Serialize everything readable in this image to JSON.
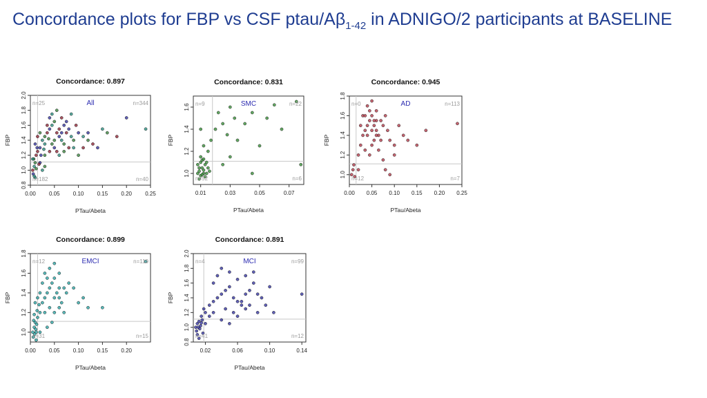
{
  "title": {
    "before": "Concordance plots for FBP vs CSF ptau/A",
    "greek": "β",
    "subscript": "1-42",
    "after": " in ADNIGO/2 participants at BASELINE"
  },
  "colors": {
    "All_mixed": [
      "#8b1a2b",
      "#2a2a9a",
      "#1f8a7a",
      "#2e7d32"
    ],
    "SMC": "#2e8b2e",
    "AD": "#b03040",
    "EMCI": "#20a0a0",
    "MCI": "#2a2a9e",
    "cutoff": "#c8c8c8"
  },
  "chart_data": [
    {
      "type": "scatter",
      "title": "Concordance: 0.897",
      "group": "All",
      "xlabel": "PTau/Abeta",
      "ylabel": "FBP",
      "xlim": [
        0,
        0.25
      ],
      "ylim": [
        0.8,
        2.0
      ],
      "xticks": [
        "0.00",
        "0.05",
        "0.10",
        "0.15",
        "0.20",
        "0.25"
      ],
      "yticks": [
        "0.8",
        "1.0",
        "1.2",
        "1.4",
        "1.6",
        "1.8",
        "2.0"
      ],
      "quadrant_counts": {
        "top_left": "n=25",
        "top_right": "n=344",
        "bottom_left": "n=182",
        "bottom_right": "n=40"
      },
      "x_cutoff": 0.015,
      "y_cutoff": 1.11,
      "points": [
        [
          0.005,
          1.0
        ],
        [
          0.006,
          0.95
        ],
        [
          0.008,
          1.05
        ],
        [
          0.01,
          1.1
        ],
        [
          0.012,
          1.2
        ],
        [
          0.014,
          1.3
        ],
        [
          0.01,
          0.9
        ],
        [
          0.007,
          1.15
        ],
        [
          0.015,
          1.25
        ],
        [
          0.02,
          1.3
        ],
        [
          0.025,
          1.4
        ],
        [
          0.03,
          1.45
        ],
        [
          0.035,
          1.5
        ],
        [
          0.04,
          1.55
        ],
        [
          0.045,
          1.6
        ],
        [
          0.05,
          1.65
        ],
        [
          0.055,
          1.5
        ],
        [
          0.06,
          1.45
        ],
        [
          0.065,
          1.4
        ],
        [
          0.07,
          1.35
        ],
        [
          0.075,
          1.5
        ],
        [
          0.08,
          1.55
        ],
        [
          0.085,
          1.45
        ],
        [
          0.09,
          1.4
        ],
        [
          0.095,
          1.6
        ],
        [
          0.1,
          1.5
        ],
        [
          0.11,
          1.45
        ],
        [
          0.12,
          1.4
        ],
        [
          0.13,
          1.35
        ],
        [
          0.14,
          1.3
        ],
        [
          0.15,
          1.55
        ],
        [
          0.16,
          1.5
        ],
        [
          0.18,
          1.45
        ],
        [
          0.2,
          1.7
        ],
        [
          0.24,
          1.55
        ],
        [
          0.03,
          1.2
        ],
        [
          0.04,
          1.25
        ],
        [
          0.05,
          1.3
        ],
        [
          0.06,
          1.2
        ],
        [
          0.07,
          1.25
        ],
        [
          0.08,
          1.3
        ],
        [
          0.02,
          1.1
        ],
        [
          0.025,
          1.0
        ],
        [
          0.03,
          1.05
        ],
        [
          0.035,
          1.6
        ],
        [
          0.04,
          1.7
        ],
        [
          0.045,
          1.75
        ],
        [
          0.055,
          1.8
        ],
        [
          0.065,
          1.7
        ],
        [
          0.075,
          1.65
        ],
        [
          0.085,
          1.75
        ],
        [
          0.05,
          1.4
        ],
        [
          0.06,
          1.55
        ],
        [
          0.07,
          1.6
        ],
        [
          0.03,
          1.35
        ],
        [
          0.02,
          1.5
        ],
        [
          0.015,
          1.45
        ],
        [
          0.01,
          1.35
        ],
        [
          0.005,
          1.15
        ],
        [
          0.045,
          1.35
        ],
        [
          0.055,
          1.25
        ],
        [
          0.065,
          1.5
        ],
        [
          0.09,
          1.3
        ],
        [
          0.1,
          1.2
        ],
        [
          0.11,
          1.3
        ],
        [
          0.12,
          1.5
        ],
        [
          0.008,
          0.92
        ],
        [
          0.012,
          1.02
        ],
        [
          0.018,
          1.08
        ],
        [
          0.022,
          1.2
        ],
        [
          0.028,
          1.28
        ],
        [
          0.038,
          1.42
        ]
      ]
    },
    {
      "type": "scatter",
      "title": "Concordance: 0.831",
      "group": "SMC",
      "xlabel": "PTau/Abeta",
      "ylabel": "FBP",
      "xlim": [
        0.005,
        0.08
      ],
      "ylim": [
        0.9,
        1.7
      ],
      "xticks": [
        "0.01",
        "0.03",
        "0.05",
        "0.07"
      ],
      "yticks": [
        "1.0",
        "1.2",
        "1.4",
        "1.6"
      ],
      "quadrant_counts": {
        "top_left": "n=9",
        "top_right": "n=22",
        "bottom_left": "n=52",
        "bottom_right": "n=6"
      },
      "x_cutoff": 0.018,
      "y_cutoff": 1.11,
      "points": [
        [
          0.008,
          1.0
        ],
        [
          0.009,
          1.02
        ],
        [
          0.01,
          0.98
        ],
        [
          0.011,
          1.05
        ],
        [
          0.012,
          1.0
        ],
        [
          0.013,
          1.08
        ],
        [
          0.009,
          0.95
        ],
        [
          0.01,
          1.1
        ],
        [
          0.012,
          1.03
        ],
        [
          0.014,
          1.0
        ],
        [
          0.015,
          1.05
        ],
        [
          0.008,
          1.08
        ],
        [
          0.011,
          1.12
        ],
        [
          0.013,
          0.97
        ],
        [
          0.016,
          1.02
        ],
        [
          0.01,
          1.15
        ],
        [
          0.012,
          1.25
        ],
        [
          0.015,
          1.2
        ],
        [
          0.01,
          1.4
        ],
        [
          0.017,
          1.3
        ],
        [
          0.02,
          1.4
        ],
        [
          0.022,
          1.55
        ],
        [
          0.025,
          1.45
        ],
        [
          0.028,
          1.35
        ],
        [
          0.03,
          1.6
        ],
        [
          0.033,
          1.5
        ],
        [
          0.035,
          1.3
        ],
        [
          0.04,
          1.45
        ],
        [
          0.045,
          1.55
        ],
        [
          0.05,
          1.25
        ],
        [
          0.055,
          1.5
        ],
        [
          0.06,
          1.62
        ],
        [
          0.065,
          1.4
        ],
        [
          0.075,
          1.65
        ],
        [
          0.078,
          1.08
        ],
        [
          0.045,
          1.0
        ],
        [
          0.025,
          1.08
        ],
        [
          0.03,
          1.15
        ],
        [
          0.009,
          1.05
        ],
        [
          0.011,
          0.99
        ],
        [
          0.014,
          1.1
        ],
        [
          0.012,
          1.13
        ]
      ]
    },
    {
      "type": "scatter",
      "title": "Concordance: 0.945",
      "group": "AD",
      "xlabel": "PTau/Abeta",
      "ylabel": "FBP",
      "xlim": [
        0,
        0.25
      ],
      "ylim": [
        0.9,
        1.8
      ],
      "xticks": [
        "0.00",
        "0.05",
        "0.10",
        "0.15",
        "0.20",
        "0.25"
      ],
      "yticks": [
        "1.0",
        "1.2",
        "1.4",
        "1.6",
        "1.8"
      ],
      "quadrant_counts": {
        "top_left": "n=0",
        "top_right": "n=113",
        "bottom_left": "n=12",
        "bottom_right": "n=7"
      },
      "x_cutoff": 0.015,
      "y_cutoff": 1.11,
      "points": [
        [
          0.005,
          1.0
        ],
        [
          0.008,
          1.05
        ],
        [
          0.01,
          1.1
        ],
        [
          0.012,
          0.98
        ],
        [
          0.02,
          1.2
        ],
        [
          0.025,
          1.3
        ],
        [
          0.03,
          1.4
        ],
        [
          0.035,
          1.45
        ],
        [
          0.04,
          1.5
        ],
        [
          0.045,
          1.55
        ],
        [
          0.05,
          1.6
        ],
        [
          0.055,
          1.5
        ],
        [
          0.06,
          1.45
        ],
        [
          0.065,
          1.4
        ],
        [
          0.07,
          1.55
        ],
        [
          0.075,
          1.5
        ],
        [
          0.08,
          1.6
        ],
        [
          0.085,
          1.45
        ],
        [
          0.09,
          1.35
        ],
        [
          0.1,
          1.3
        ],
        [
          0.11,
          1.5
        ],
        [
          0.12,
          1.4
        ],
        [
          0.13,
          1.35
        ],
        [
          0.15,
          1.3
        ],
        [
          0.17,
          1.45
        ],
        [
          0.24,
          1.52
        ],
        [
          0.03,
          1.6
        ],
        [
          0.04,
          1.7
        ],
        [
          0.05,
          1.75
        ],
        [
          0.06,
          1.65
        ],
        [
          0.035,
          1.25
        ],
        [
          0.045,
          1.2
        ],
        [
          0.055,
          1.35
        ],
        [
          0.065,
          1.25
        ],
        [
          0.075,
          1.15
        ],
        [
          0.08,
          1.05
        ],
        [
          0.09,
          1.0
        ],
        [
          0.1,
          1.2
        ],
        [
          0.04,
          1.4
        ],
        [
          0.05,
          1.45
        ],
        [
          0.06,
          1.55
        ],
        [
          0.07,
          1.35
        ],
        [
          0.025,
          1.5
        ],
        [
          0.035,
          1.6
        ],
        [
          0.045,
          1.65
        ],
        [
          0.055,
          1.55
        ],
        [
          0.05,
          1.3
        ],
        [
          0.06,
          1.4
        ],
        [
          0.02,
          1.05
        ]
      ]
    },
    {
      "type": "scatter",
      "title": "Concordance: 0.899",
      "group": "EMCI",
      "xlabel": "PTau/Abeta",
      "ylabel": "FBP",
      "xlim": [
        0,
        0.25
      ],
      "ylim": [
        0.9,
        1.8
      ],
      "xticks": [
        "0.00",
        "0.05",
        "0.10",
        "0.15",
        "0.20"
      ],
      "yticks": [
        "1.0",
        "1.2",
        "1.4",
        "1.6",
        "1.8"
      ],
      "quadrant_counts": {
        "top_left": "n=12",
        "top_right": "n=110",
        "bottom_left": "n=31",
        "bottom_right": "n=15"
      },
      "x_cutoff": 0.015,
      "y_cutoff": 1.11,
      "points": [
        [
          0.005,
          1.0
        ],
        [
          0.006,
          0.95
        ],
        [
          0.008,
          1.05
        ],
        [
          0.01,
          1.1
        ],
        [
          0.012,
          1.0
        ],
        [
          0.007,
          1.12
        ],
        [
          0.009,
          0.98
        ],
        [
          0.011,
          1.03
        ],
        [
          0.013,
          1.08
        ],
        [
          0.015,
          1.15
        ],
        [
          0.02,
          1.2
        ],
        [
          0.025,
          1.3
        ],
        [
          0.03,
          1.35
        ],
        [
          0.035,
          1.4
        ],
        [
          0.04,
          1.45
        ],
        [
          0.045,
          1.5
        ],
        [
          0.05,
          1.55
        ],
        [
          0.055,
          1.4
        ],
        [
          0.06,
          1.35
        ],
        [
          0.065,
          1.3
        ],
        [
          0.07,
          1.45
        ],
        [
          0.075,
          1.4
        ],
        [
          0.08,
          1.5
        ],
        [
          0.09,
          1.45
        ],
        [
          0.1,
          1.3
        ],
        [
          0.11,
          1.35
        ],
        [
          0.12,
          1.25
        ],
        [
          0.15,
          1.25
        ],
        [
          0.24,
          1.72
        ],
        [
          0.03,
          1.6
        ],
        [
          0.04,
          1.65
        ],
        [
          0.05,
          1.7
        ],
        [
          0.06,
          1.6
        ],
        [
          0.025,
          1.5
        ],
        [
          0.035,
          1.55
        ],
        [
          0.02,
          1.4
        ],
        [
          0.015,
          1.35
        ],
        [
          0.01,
          1.3
        ],
        [
          0.03,
          1.2
        ],
        [
          0.04,
          1.25
        ],
        [
          0.05,
          1.2
        ],
        [
          0.06,
          1.25
        ],
        [
          0.07,
          1.2
        ],
        [
          0.045,
          1.1
        ],
        [
          0.035,
          1.05
        ],
        [
          0.02,
          1.0
        ],
        [
          0.012,
          0.92
        ],
        [
          0.014,
          1.22
        ],
        [
          0.008,
          1.18
        ],
        [
          0.018,
          1.28
        ],
        [
          0.05,
          1.35
        ],
        [
          0.06,
          1.45
        ]
      ]
    },
    {
      "type": "scatter",
      "title": "Concordance: 0.891",
      "group": "MCI",
      "xlabel": "PTau/Abeta",
      "ylabel": "FBP",
      "xlim": [
        0.005,
        0.145
      ],
      "ylim": [
        0.8,
        2.0
      ],
      "xticks": [
        "0.02",
        "0.06",
        "0.10",
        "0.14"
      ],
      "yticks": [
        "0.8",
        "1.0",
        "1.2",
        "1.4",
        "1.6",
        "1.8",
        "2.0"
      ],
      "quadrant_counts": {
        "top_left": "n=4",
        "top_right": "n=99",
        "bottom_left": "n=41",
        "bottom_right": "n=12"
      },
      "x_cutoff": 0.018,
      "y_cutoff": 1.11,
      "points": [
        [
          0.008,
          1.0
        ],
        [
          0.009,
          0.95
        ],
        [
          0.01,
          1.05
        ],
        [
          0.011,
          1.0
        ],
        [
          0.012,
          1.08
        ],
        [
          0.013,
          0.98
        ],
        [
          0.014,
          1.02
        ],
        [
          0.015,
          1.06
        ],
        [
          0.01,
          0.9
        ],
        [
          0.016,
          1.1
        ],
        [
          0.02,
          1.2
        ],
        [
          0.025,
          1.3
        ],
        [
          0.03,
          1.35
        ],
        [
          0.035,
          1.4
        ],
        [
          0.04,
          1.45
        ],
        [
          0.045,
          1.5
        ],
        [
          0.05,
          1.55
        ],
        [
          0.055,
          1.4
        ],
        [
          0.06,
          1.35
        ],
        [
          0.065,
          1.3
        ],
        [
          0.07,
          1.45
        ],
        [
          0.075,
          1.5
        ],
        [
          0.08,
          1.6
        ],
        [
          0.085,
          1.45
        ],
        [
          0.09,
          1.4
        ],
        [
          0.095,
          1.3
        ],
        [
          0.1,
          1.55
        ],
        [
          0.105,
          1.2
        ],
        [
          0.14,
          1.45
        ],
        [
          0.03,
          1.6
        ],
        [
          0.035,
          1.7
        ],
        [
          0.04,
          1.8
        ],
        [
          0.05,
          1.75
        ],
        [
          0.06,
          1.65
        ],
        [
          0.07,
          1.7
        ],
        [
          0.08,
          1.75
        ],
        [
          0.025,
          1.15
        ],
        [
          0.03,
          1.2
        ],
        [
          0.04,
          1.1
        ],
        [
          0.05,
          1.05
        ],
        [
          0.06,
          1.15
        ],
        [
          0.07,
          1.25
        ],
        [
          0.02,
          1.05
        ],
        [
          0.015,
          1.15
        ],
        [
          0.018,
          1.25
        ],
        [
          0.045,
          1.25
        ],
        [
          0.055,
          1.2
        ],
        [
          0.065,
          1.35
        ],
        [
          0.075,
          1.3
        ],
        [
          0.085,
          1.2
        ],
        [
          0.012,
          0.85
        ],
        [
          0.017,
          0.92
        ]
      ]
    }
  ]
}
